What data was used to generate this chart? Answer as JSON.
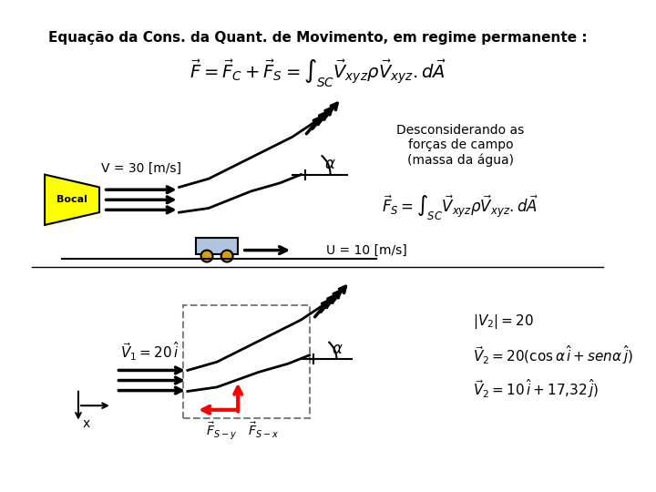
{
  "title": "Equação da Cons. da Quant. de Movimento, em regime permanente :",
  "main_formula": "$\\vec{F} = \\vec{F}_C + \\vec{F}_S = \\int_{SC} \\vec{V}_{xyz} \\rho \\vec{V}_{xyz} . d\\vec{A}$",
  "desconsiderando": "Desconsiderando as\nforças de campo\n(massa da água)",
  "fs_formula": "$\\vec{F}_S = \\int_{SC} \\vec{V}_{xyz} \\rho \\vec{V}_{xyz} . d\\vec{A}$",
  "V_label": "V = 30 [m/s]",
  "U_label": "U = 10 [m/s]",
  "bocal_label": "Bocal",
  "alpha_label": "$\\alpha$",
  "v1_eq": "$\\vec{V}_1 = 20 \\, \\hat{i}$",
  "v2_abs": "$|V_2| = 20$",
  "v2_eq1": "$\\vec{V}_2 = 20 (\\cos\\alpha \\, \\hat{i} + sen\\alpha \\, \\hat{j})$",
  "v2_eq2": "$\\vec{V}_2 = 10 \\, \\hat{i} + 17{,}32 \\, \\hat{j})$",
  "fsy_label": "$\\vec{F}_{S-y}$",
  "fsx_label": "$\\vec{F}_{S-x}$",
  "x_label": "x",
  "bg_color": "#ffffff",
  "bocal_color": "#ffff00",
  "cart_color": "#b0c4de",
  "arrow_color": "#000000",
  "red_arrow_color": "#ff0000",
  "dashed_color": "#808080"
}
